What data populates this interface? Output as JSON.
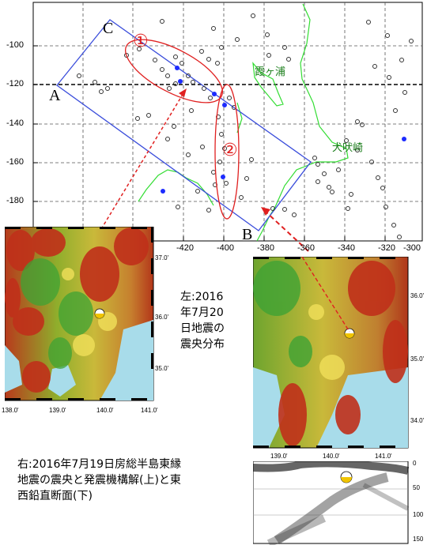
{
  "main_map": {
    "y_ticks": [
      "-100",
      "-120",
      "-140",
      "-160",
      "-180"
    ],
    "x_ticks": [
      "-420",
      "-400",
      "-380",
      "-360",
      "-340",
      "-320",
      "-300"
    ],
    "labels": {
      "A": "A",
      "B": "B",
      "C": "C",
      "region1": "①",
      "region2": "②",
      "kasumigaura": "霞ヶ浦",
      "inubosaki": "犬吠崎"
    }
  },
  "left_map": {
    "lat_ticks": [
      "37.0'",
      "36.0'",
      "35.0'"
    ],
    "lon_ticks": [
      "138.0'",
      "139.0'",
      "140.0'",
      "141.0'"
    ]
  },
  "right_map": {
    "lat_ticks": [
      "36.0'",
      "35.0'",
      "34.0'"
    ],
    "lon_ticks": [
      "139.0'",
      "140.0'",
      "141.0'"
    ]
  },
  "cross_section": {
    "depth_ticks": [
      "0",
      "50",
      "100",
      "150"
    ]
  },
  "captions": {
    "left_lines": [
      "左:2016",
      "年7月20",
      "日地震の",
      "震央分布"
    ],
    "right_lines": [
      "右:2016年7月19日房総半島東縁",
      "地震の震央と発震機構解(上)と東",
      "西鉛直断面(下)"
    ]
  },
  "colors": {
    "rectangle": "#3a4ddb",
    "coast": "#33dd33",
    "circle_annotation": "#e02020",
    "events_blue": "#1c2bff"
  }
}
